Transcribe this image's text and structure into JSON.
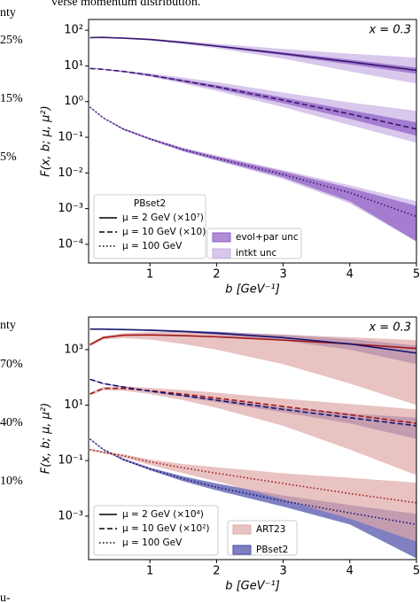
{
  "header_text": "verse momentum distribution.",
  "margin_texts": [
    "nty",
    "25%",
    "15%",
    "5%",
    "nty",
    "70%",
    "40%",
    "10%",
    "u-"
  ],
  "chart_data": [
    {
      "type": "line",
      "annotation": "x = 0.3",
      "xlabel": "b [GeV⁻¹]",
      "ylabel": "F(x, b; μ, μ²)",
      "log_y": true,
      "xlim": [
        0.08,
        5
      ],
      "ylim": [
        3e-05,
        200
      ],
      "xticks": [
        1,
        2,
        3,
        4,
        5
      ],
      "yticks": [
        {
          "value": 0.0001,
          "label": "10⁻⁴"
        },
        {
          "value": 0.001,
          "label": "10⁻³"
        },
        {
          "value": 0.01,
          "label": "10⁻²"
        },
        {
          "value": 0.1,
          "label": "10⁻¹"
        },
        {
          "value": 1,
          "label": "10⁰"
        },
        {
          "value": 10,
          "label": "10¹"
        },
        {
          "value": 100,
          "label": "10²"
        }
      ],
      "legend_title": "PBset2",
      "x": [
        0.1,
        0.3,
        0.6,
        1,
        1.5,
        2,
        3,
        4,
        5
      ],
      "series": [
        {
          "name": "μ = 2 GeV (×10⁷)",
          "dash": "solid",
          "lines": [
            {
              "color": "#3a1670",
              "values": [
                62,
                63,
                60,
                55,
                45,
                36,
                22,
                13,
                7.5
              ]
            }
          ]
        },
        {
          "name": "μ = 10 GeV (×10)",
          "dash": "dashed",
          "lines": [
            {
              "color": "#3a1670",
              "values": [
                8.5,
                8,
                7,
                5.5,
                3.8,
                2.6,
                1.1,
                0.45,
                0.17
              ]
            }
          ]
        },
        {
          "name": "μ = 100 GeV",
          "dash": "dotted",
          "lines": [
            {
              "color": "#3a1670",
              "values": [
                0.7,
                0.35,
                0.17,
                0.09,
                0.045,
                0.026,
                0.009,
                0.0028,
                0.0006
              ]
            }
          ]
        }
      ],
      "bands": [
        {
          "name": "intkt unc",
          "color": "#c8b0e4",
          "ranges": [
            {
              "lower": [
                60,
                61,
                58,
                52,
                41,
                31,
                16,
                7,
                3.2
              ],
              "upper": [
                64,
                65,
                63,
                58,
                50,
                42,
                30,
                22,
                17
              ]
            },
            {
              "lower": [
                8.3,
                7.8,
                6.6,
                5,
                3.2,
                2,
                0.7,
                0.22,
                0.07
              ],
              "upper": [
                8.7,
                8.2,
                7.4,
                6.2,
                4.7,
                3.5,
                1.8,
                0.95,
                0.55
              ]
            },
            {
              "lower": [
                0.68,
                0.34,
                0.16,
                0.083,
                0.04,
                0.022,
                0.0068,
                0.0014,
                0.00012
              ],
              "upper": [
                0.72,
                0.36,
                0.18,
                0.097,
                0.051,
                0.031,
                0.012,
                0.0045,
                0.0016
              ]
            }
          ]
        },
        {
          "name": "evol+par unc",
          "color": "#8e5cc4",
          "ranges": [
            {
              "lower": [
                60,
                61,
                58,
                53,
                43,
                34,
                20,
                11,
                6
              ],
              "upper": [
                64,
                65,
                62,
                57,
                47,
                38,
                24,
                15,
                9
              ]
            },
            {
              "lower": [
                8.3,
                7.8,
                6.8,
                5.2,
                3.5,
                2.3,
                0.9,
                0.33,
                0.11
              ],
              "upper": [
                8.7,
                8.2,
                7.2,
                5.8,
                4.1,
                2.9,
                1.3,
                0.58,
                0.26
              ]
            },
            {
              "lower": [
                0.68,
                0.34,
                0.16,
                0.085,
                0.041,
                0.023,
                0.0075,
                0.0016,
                0.00012
              ],
              "upper": [
                0.72,
                0.36,
                0.18,
                0.095,
                0.049,
                0.029,
                0.011,
                0.0038,
                0.0012
              ]
            }
          ]
        }
      ]
    },
    {
      "type": "line",
      "annotation": "x = 0.3",
      "xlabel": "b [GeV⁻¹]",
      "ylabel": "F(x, b; μ, μ²)",
      "log_y": true,
      "xlim": [
        0.08,
        5
      ],
      "ylim": [
        2.7e-05,
        15000
      ],
      "xticks": [
        1,
        2,
        3,
        4,
        5
      ],
      "yticks": [
        {
          "value": 0.001,
          "label": "10⁻³"
        },
        {
          "value": 0.1,
          "label": "10⁻¹"
        },
        {
          "value": 10,
          "label": "10¹"
        },
        {
          "value": 1000,
          "label": "10³"
        }
      ],
      "x": [
        0.1,
        0.3,
        0.6,
        1,
        1.5,
        2,
        3,
        4,
        5
      ],
      "series": [
        {
          "name": "μ = 2 GeV (×10⁴)",
          "dash": "solid",
          "lines": [
            {
              "color": "#a01818",
              "values": [
                1500,
                2700,
                3300,
                3400,
                3200,
                2900,
                2200,
                1600,
                1100
              ]
            },
            {
              "color": "#14146e",
              "values": [
                5500,
                5500,
                5300,
                5000,
                4500,
                3900,
                2700,
                1600,
                750
              ]
            }
          ]
        },
        {
          "name": "μ = 10 GeV (×10²)",
          "dash": "dashed",
          "lines": [
            {
              "color": "#a01818",
              "values": [
                25,
                40,
                40,
                33,
                25,
                18,
                9,
                4.5,
                2.2
              ]
            },
            {
              "color": "#14146e",
              "values": [
                85,
                60,
                45,
                32,
                22,
                15,
                7,
                3.5,
                1.8
              ]
            }
          ]
        },
        {
          "name": "μ = 100 GeV",
          "dash": "dotted",
          "lines": [
            {
              "color": "#a01818",
              "values": [
                0.25,
                0.2,
                0.15,
                0.09,
                0.055,
                0.035,
                0.015,
                0.0065,
                0.003
              ]
            },
            {
              "color": "#14146e",
              "values": [
                0.6,
                0.25,
                0.11,
                0.05,
                0.022,
                0.011,
                0.0035,
                0.0013,
                0.0005
              ]
            }
          ]
        }
      ],
      "bands": [
        {
          "name": "PBset2",
          "color": "#4848a8",
          "ranges": [
            {
              "lower": [
                5300,
                5300,
                5100,
                4700,
                4100,
                3400,
                2100,
                1000,
                300
              ],
              "upper": [
                5700,
                5700,
                5500,
                5300,
                4900,
                4400,
                3400,
                2400,
                1400
              ]
            },
            {
              "lower": [
                82,
                58,
                43,
                30,
                20,
                13,
                5.5,
                2.2,
                0.6
              ],
              "upper": [
                88,
                62,
                47,
                34,
                24,
                17,
                8.5,
                5,
                3.5
              ]
            },
            {
              "lower": [
                0.58,
                0.24,
                0.1,
                0.045,
                0.018,
                0.0085,
                0.0022,
                0.0005,
                3e-05
              ],
              "upper": [
                0.62,
                0.26,
                0.12,
                0.056,
                0.027,
                0.015,
                0.0055,
                0.0025,
                0.0012
              ]
            }
          ]
        },
        {
          "name": "ART23",
          "color": "#dfa8a8",
          "ranges": [
            {
              "lower": [
                1300,
                2300,
                2600,
                2300,
                1600,
                1000,
                300,
                60,
                10
              ],
              "upper": [
                1700,
                3100,
                3900,
                4300,
                4300,
                4100,
                3500,
                2800,
                2200
              ]
            },
            {
              "lower": [
                22,
                35,
                33,
                25,
                15,
                8,
                1.8,
                0.25,
                0.03
              ],
              "upper": [
                28,
                45,
                48,
                42,
                35,
                28,
                17,
                11,
                7
              ]
            },
            {
              "lower": [
                0.23,
                0.18,
                0.13,
                0.07,
                0.035,
                0.018,
                0.004,
                0.0008,
                0.00012
              ],
              "upper": [
                0.27,
                0.22,
                0.17,
                0.11,
                0.075,
                0.058,
                0.035,
                0.024,
                0.016
              ]
            }
          ]
        }
      ]
    }
  ]
}
